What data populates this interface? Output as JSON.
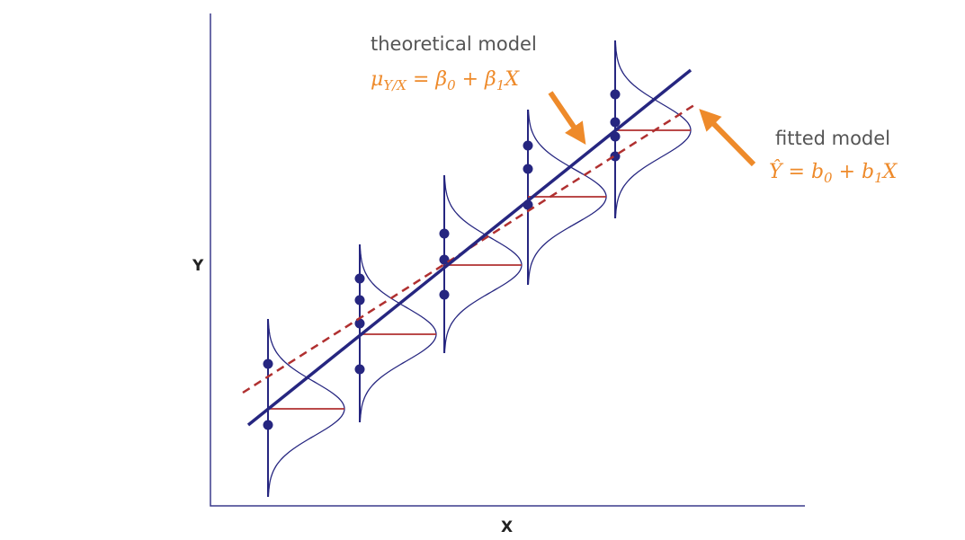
{
  "axes": {
    "x_label": "X",
    "y_label": "Y"
  },
  "theoretical_model": {
    "label": "theoretical model",
    "formula": [
      "μ",
      "Y/X",
      " = β",
      "0",
      " + β",
      "1",
      "X"
    ]
  },
  "fitted_model": {
    "label": "fitted model",
    "formula": [
      "Ŷ",
      " = b",
      "0",
      " + b",
      "1",
      "X"
    ]
  }
}
